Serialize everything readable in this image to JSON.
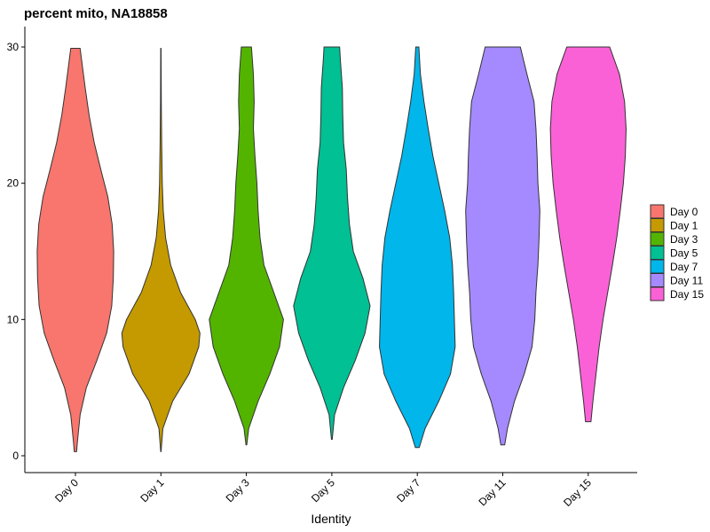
{
  "chart_data": {
    "type": "violin",
    "title": "percent mito, NA18858",
    "xlabel": "Identity",
    "ylabel": "",
    "ylim": [
      0,
      30
    ],
    "yticks": [
      0,
      10,
      20,
      30
    ],
    "categories": [
      "Day 0",
      "Day 1",
      "Day 3",
      "Day 5",
      "Day 7",
      "Day 11",
      "Day 15"
    ],
    "colors": [
      "#F8766D",
      "#C49A00",
      "#53B400",
      "#00C094",
      "#00B6EB",
      "#A58AFF",
      "#FB61D7"
    ],
    "legend_position": "right",
    "grid": false,
    "series": [
      {
        "category": "Day 0",
        "min": 0.3,
        "max": 29.9,
        "profile": [
          [
            0.3,
            0.03
          ],
          [
            1,
            0.05
          ],
          [
            3,
            0.12
          ],
          [
            5,
            0.28
          ],
          [
            7,
            0.55
          ],
          [
            9,
            0.8
          ],
          [
            11,
            0.93
          ],
          [
            13,
            0.97
          ],
          [
            15,
            0.98
          ],
          [
            17,
            0.94
          ],
          [
            19,
            0.83
          ],
          [
            21,
            0.65
          ],
          [
            23,
            0.48
          ],
          [
            25,
            0.35
          ],
          [
            27,
            0.25
          ],
          [
            29,
            0.16
          ],
          [
            29.9,
            0.12
          ]
        ]
      },
      {
        "category": "Day 1",
        "min": 0.3,
        "max": 29.9,
        "profile": [
          [
            0.3,
            0.005
          ],
          [
            2,
            0.05
          ],
          [
            4,
            0.3
          ],
          [
            6,
            0.72
          ],
          [
            8,
            0.97
          ],
          [
            9,
            1.0
          ],
          [
            10,
            0.88
          ],
          [
            12,
            0.5
          ],
          [
            14,
            0.25
          ],
          [
            16,
            0.12
          ],
          [
            18,
            0.06
          ],
          [
            20,
            0.035
          ],
          [
            23,
            0.02
          ],
          [
            26,
            0.01
          ],
          [
            29.9,
            0.005
          ]
        ]
      },
      {
        "category": "Day 3",
        "min": 0.8,
        "max": 30,
        "profile": [
          [
            0.8,
            0.01
          ],
          [
            2,
            0.06
          ],
          [
            4,
            0.3
          ],
          [
            6,
            0.6
          ],
          [
            8,
            0.85
          ],
          [
            10,
            0.95
          ],
          [
            12,
            0.7
          ],
          [
            14,
            0.45
          ],
          [
            16,
            0.35
          ],
          [
            18,
            0.3
          ],
          [
            20,
            0.27
          ],
          [
            22,
            0.22
          ],
          [
            24,
            0.18
          ],
          [
            26,
            0.2
          ],
          [
            28,
            0.18
          ],
          [
            30,
            0.13
          ]
        ]
      },
      {
        "category": "Day 5",
        "min": 1.2,
        "max": 30,
        "profile": [
          [
            1.2,
            0.01
          ],
          [
            3,
            0.07
          ],
          [
            5,
            0.3
          ],
          [
            7,
            0.6
          ],
          [
            9,
            0.85
          ],
          [
            11,
            0.98
          ],
          [
            13,
            0.8
          ],
          [
            15,
            0.55
          ],
          [
            17,
            0.45
          ],
          [
            19,
            0.4
          ],
          [
            21,
            0.37
          ],
          [
            23,
            0.3
          ],
          [
            25,
            0.28
          ],
          [
            27,
            0.27
          ],
          [
            29,
            0.22
          ],
          [
            30,
            0.2
          ]
        ]
      },
      {
        "category": "Day 7",
        "min": 0.6,
        "max": 30,
        "profile": [
          [
            0.6,
            0.05
          ],
          [
            2,
            0.2
          ],
          [
            4,
            0.55
          ],
          [
            6,
            0.85
          ],
          [
            8,
            0.97
          ],
          [
            10,
            0.95
          ],
          [
            12,
            0.93
          ],
          [
            14,
            0.9
          ],
          [
            16,
            0.83
          ],
          [
            18,
            0.7
          ],
          [
            20,
            0.55
          ],
          [
            22,
            0.4
          ],
          [
            24,
            0.28
          ],
          [
            26,
            0.17
          ],
          [
            28,
            0.08
          ],
          [
            30,
            0.04
          ]
        ]
      },
      {
        "category": "Day 11",
        "min": 0.8,
        "max": 30,
        "profile": [
          [
            0.8,
            0.05
          ],
          [
            2,
            0.12
          ],
          [
            4,
            0.3
          ],
          [
            6,
            0.55
          ],
          [
            8,
            0.75
          ],
          [
            10,
            0.82
          ],
          [
            12,
            0.85
          ],
          [
            14,
            0.9
          ],
          [
            16,
            0.93
          ],
          [
            18,
            0.95
          ],
          [
            20,
            0.9
          ],
          [
            22,
            0.88
          ],
          [
            24,
            0.85
          ],
          [
            26,
            0.8
          ],
          [
            28,
            0.62
          ],
          [
            30,
            0.45
          ]
        ]
      },
      {
        "category": "Day 15",
        "min": 2.5,
        "max": 30,
        "profile": [
          [
            2.5,
            0.07
          ],
          [
            4,
            0.12
          ],
          [
            6,
            0.2
          ],
          [
            8,
            0.28
          ],
          [
            10,
            0.38
          ],
          [
            12,
            0.5
          ],
          [
            14,
            0.62
          ],
          [
            16,
            0.73
          ],
          [
            18,
            0.82
          ],
          [
            20,
            0.9
          ],
          [
            22,
            0.95
          ],
          [
            24,
            0.97
          ],
          [
            26,
            0.93
          ],
          [
            28,
            0.8
          ],
          [
            30,
            0.55
          ]
        ]
      }
    ]
  }
}
